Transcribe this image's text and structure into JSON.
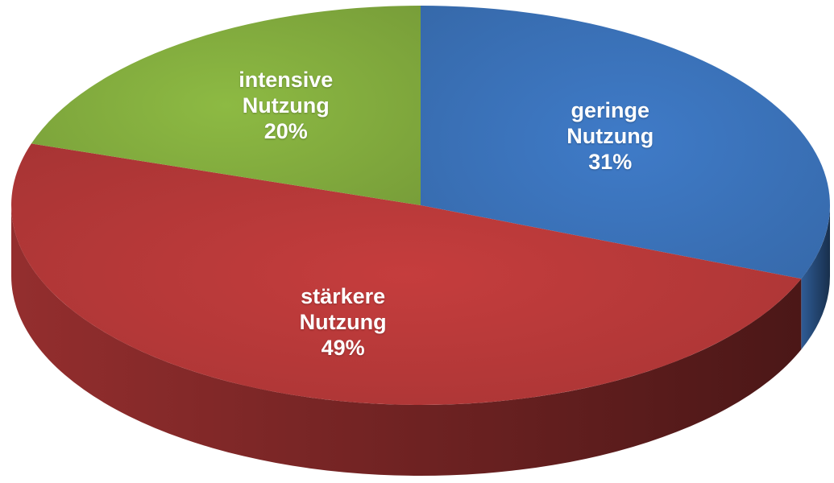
{
  "chart_data": {
    "type": "pie3d",
    "categories": [
      "geringe Nutzung",
      "stärkere Nutzung",
      "intensive Nutzung"
    ],
    "values": [
      31,
      49,
      20
    ],
    "value_labels": [
      "31%",
      "49%",
      "20%"
    ],
    "colors": [
      "#3f7bc8",
      "#c53d3d",
      "#8dba43"
    ]
  }
}
